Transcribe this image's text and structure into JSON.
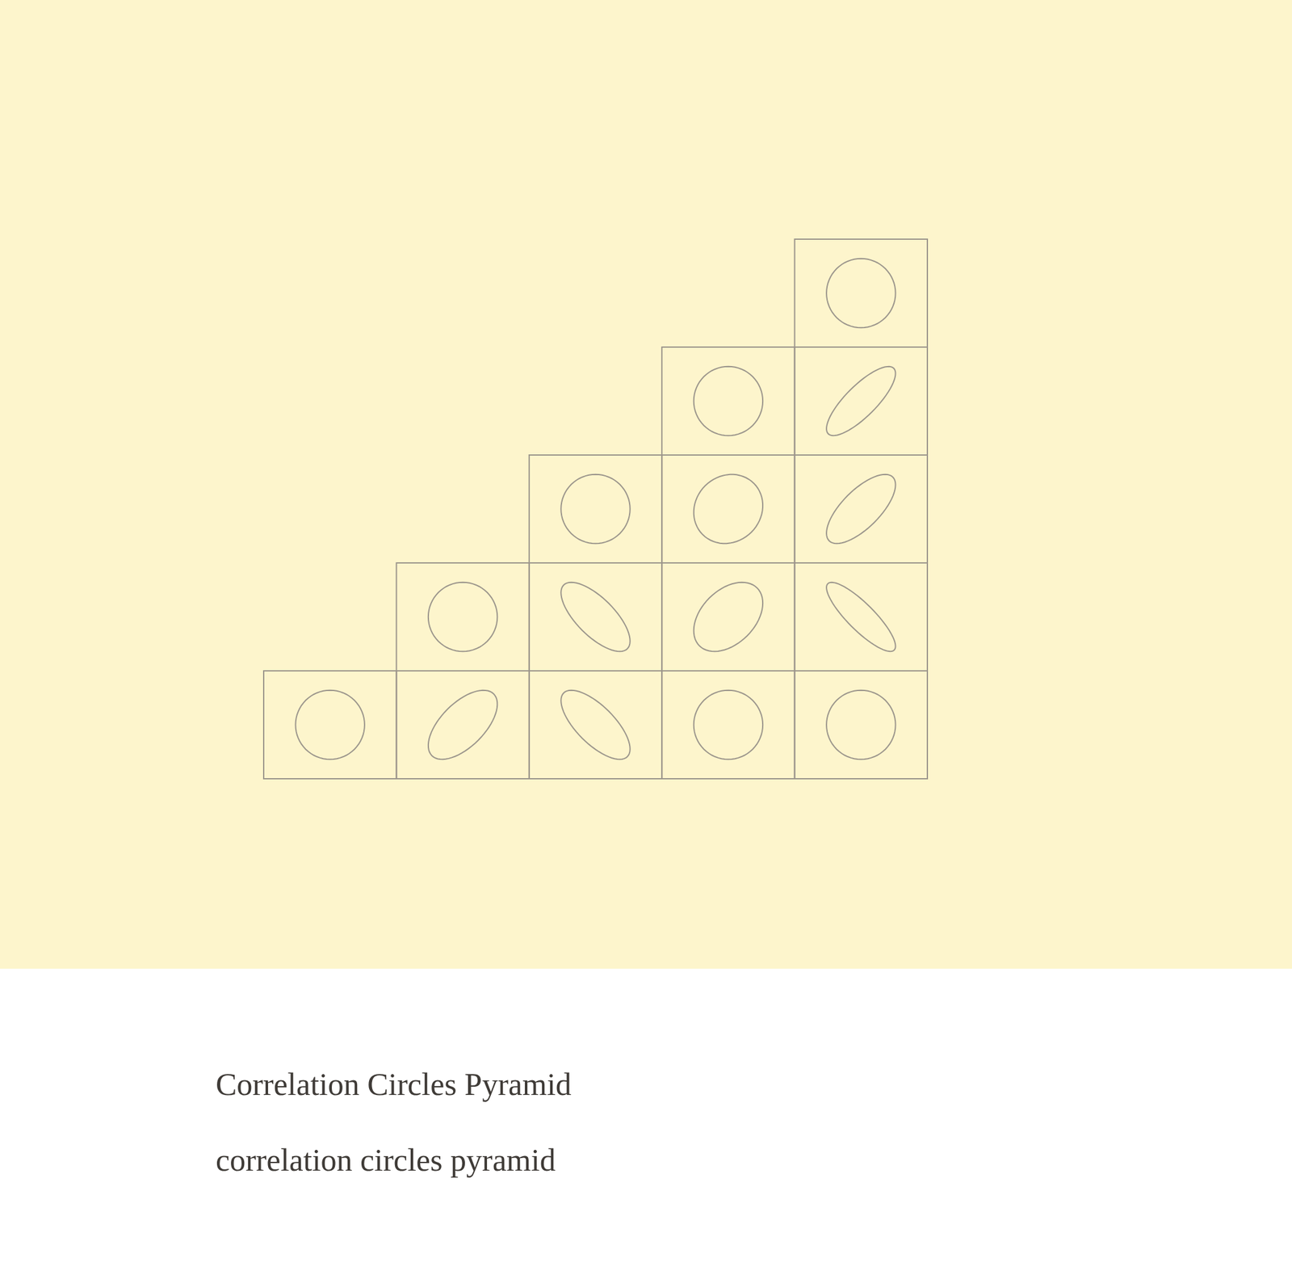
{
  "chart_data": {
    "type": "correlation_pyramid",
    "title": "Correlation Circles Pyramid",
    "subtitle": "correlation circles pyramid",
    "color": "#9c968c",
    "tick_labels": false,
    "values": [
      [
        0,
        0.6,
        -0.7,
        0,
        0
      ],
      [
        0,
        -0.7,
        0.4,
        -0.85
      ],
      [
        0,
        0.1,
        0.7
      ],
      [
        0,
        0.8
      ],
      [
        0
      ]
    ]
  }
}
